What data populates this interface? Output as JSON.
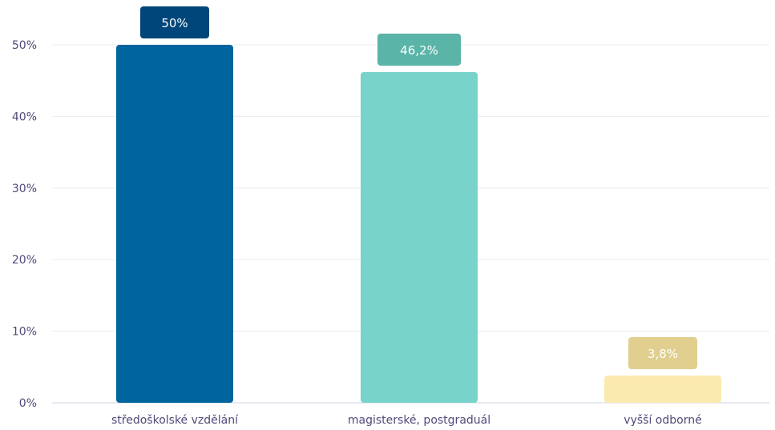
{
  "chart_data": {
    "type": "bar",
    "title": "",
    "xlabel": "",
    "ylabel": "",
    "ylim": [
      0,
      50
    ],
    "yticks": [
      0,
      10,
      20,
      30,
      40,
      50
    ],
    "ytick_labels": [
      "0%",
      "10%",
      "20%",
      "30%",
      "40%",
      "50%"
    ],
    "grid": true,
    "legend": "none",
    "categories": [
      "středoškolské vzdělání",
      "magisterské, postgraduál",
      "vyšší odborné"
    ],
    "values": [
      50,
      46.2,
      3.8
    ],
    "data_labels": [
      "50%",
      "46,2%",
      "3,8%"
    ],
    "bar_colors": [
      "#00649e",
      "#78d3ca",
      "#fbeaaf"
    ],
    "label_colors": [
      "#00467a",
      "#5ab4a8",
      "#e0cf8e"
    ]
  }
}
